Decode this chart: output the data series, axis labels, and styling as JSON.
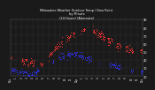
{
  "title_line1": "Milwaukee Weather Outdoor Temp / Dew Point",
  "title_line2": "by Minute",
  "title_line3": "(24 Hours) (Alternate)",
  "bg_color": "#1a1a1a",
  "grid_color": "#555555",
  "temp_color": "#ff3333",
  "dew_color": "#3333ff",
  "ylim": [
    20,
    90
  ],
  "xlim": [
    0,
    1440
  ],
  "yticks": [
    20,
    30,
    40,
    50,
    60,
    70,
    80,
    90
  ],
  "xtick_positions": [
    0,
    60,
    120,
    180,
    240,
    300,
    360,
    420,
    480,
    540,
    600,
    660,
    720,
    780,
    840,
    900,
    960,
    1020,
    1080,
    1140,
    1200,
    1260,
    1320,
    1380,
    1440
  ],
  "xtick_labels": [
    "12a",
    "1",
    "2",
    "3",
    "4",
    "5",
    "6",
    "7",
    "8",
    "9",
    "10",
    "11",
    "12p",
    "1",
    "2",
    "3",
    "4",
    "5",
    "6",
    "7",
    "8",
    "9",
    "10",
    "11",
    "12a"
  ]
}
